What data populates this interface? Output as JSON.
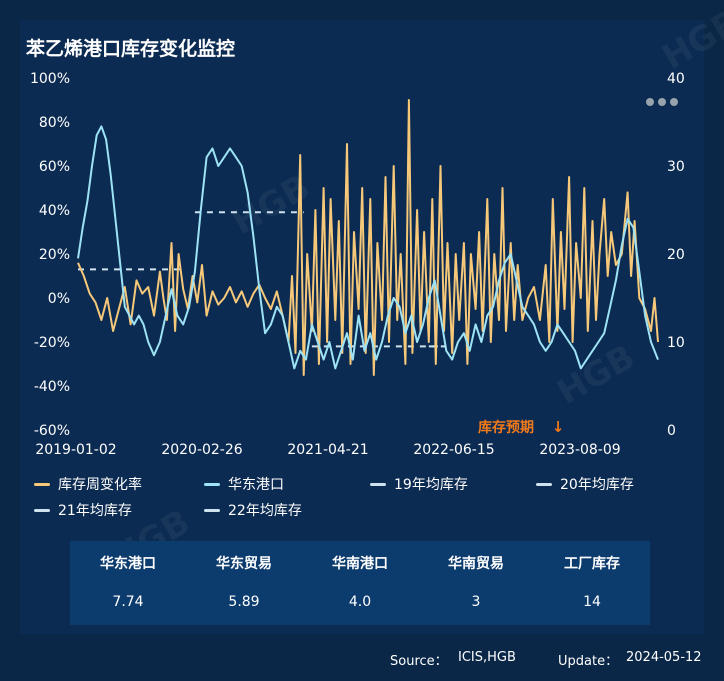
{
  "title": "苯乙烯港口库存变化监控",
  "menu_icon": "more-dots-icon",
  "watermark": "HGB",
  "chart_data": {
    "type": "line",
    "x_ticks": [
      "2019-01-02",
      "2020-02-26",
      "2021-04-21",
      "2022-06-15",
      "2023-08-09"
    ],
    "x_range": [
      "2019-01-02",
      "2024-05-12"
    ],
    "y_left": {
      "ticks": [
        "100%",
        "80%",
        "60%",
        "40%",
        "20%",
        "0%",
        "-20%",
        "-40%",
        "-60%"
      ],
      "range": [
        -60,
        100
      ],
      "unit": "%"
    },
    "y_right": {
      "ticks": [
        "40",
        "30",
        "20",
        "10",
        "0"
      ],
      "range": [
        0,
        40
      ]
    },
    "annotation": {
      "text": "库存预期",
      "arrow": "↓",
      "color": "#f07a1a"
    },
    "series": [
      {
        "name": "库存周变化率",
        "axis": "left",
        "color": "#f6c87a",
        "points": [
          [
            0,
            16
          ],
          [
            0.5,
            10
          ],
          [
            1,
            2
          ],
          [
            1.5,
            -2
          ],
          [
            2,
            -10
          ],
          [
            2.5,
            0
          ],
          [
            3,
            -15
          ],
          [
            3.5,
            -5
          ],
          [
            4,
            5
          ],
          [
            4.5,
            -12
          ],
          [
            5,
            8
          ],
          [
            5.5,
            2
          ],
          [
            6,
            5
          ],
          [
            6.5,
            -8
          ],
          [
            7,
            12
          ],
          [
            7.3,
            0
          ],
          [
            7.6,
            -10
          ],
          [
            8,
            25
          ],
          [
            8.3,
            -15
          ],
          [
            8.6,
            20
          ],
          [
            9,
            4
          ],
          [
            9.4,
            -5
          ],
          [
            9.8,
            10
          ],
          [
            10.2,
            -2
          ],
          [
            10.6,
            15
          ],
          [
            11,
            -8
          ],
          [
            11.5,
            3
          ],
          [
            12,
            -3
          ],
          [
            12.5,
            0
          ],
          [
            13,
            5
          ],
          [
            13.5,
            -2
          ],
          [
            14,
            3
          ],
          [
            14.5,
            -4
          ],
          [
            15,
            2
          ],
          [
            15.5,
            6
          ],
          [
            16,
            0
          ],
          [
            16.5,
            -5
          ],
          [
            17,
            3
          ],
          [
            17.5,
            -8
          ],
          [
            18,
            -20
          ],
          [
            18.3,
            10
          ],
          [
            18.6,
            -25
          ],
          [
            19,
            65
          ],
          [
            19.3,
            -35
          ],
          [
            19.6,
            20
          ],
          [
            20,
            -15
          ],
          [
            20.3,
            40
          ],
          [
            20.6,
            -30
          ],
          [
            21,
            50
          ],
          [
            21.3,
            -20
          ],
          [
            21.6,
            45
          ],
          [
            22,
            -10
          ],
          [
            22.3,
            35
          ],
          [
            22.6,
            -25
          ],
          [
            23,
            70
          ],
          [
            23.3,
            -30
          ],
          [
            23.6,
            30
          ],
          [
            24,
            -5
          ],
          [
            24.3,
            50
          ],
          [
            24.6,
            -25
          ],
          [
            25,
            45
          ],
          [
            25.3,
            -35
          ],
          [
            25.6,
            25
          ],
          [
            26,
            -10
          ],
          [
            26.3,
            55
          ],
          [
            26.6,
            -20
          ],
          [
            27,
            60
          ],
          [
            27.3,
            -10
          ],
          [
            27.6,
            20
          ],
          [
            28,
            -30
          ],
          [
            28.3,
            90
          ],
          [
            28.6,
            -25
          ],
          [
            29,
            40
          ],
          [
            29.3,
            -15
          ],
          [
            29.6,
            30
          ],
          [
            30,
            -20
          ],
          [
            30.3,
            45
          ],
          [
            30.6,
            -30
          ],
          [
            31,
            60
          ],
          [
            31.3,
            -15
          ],
          [
            31.6,
            25
          ],
          [
            32,
            -25
          ],
          [
            32.3,
            20
          ],
          [
            32.6,
            -10
          ],
          [
            33,
            25
          ],
          [
            33.3,
            -30
          ],
          [
            33.6,
            20
          ],
          [
            34,
            -5
          ],
          [
            34.3,
            30
          ],
          [
            34.6,
            -15
          ],
          [
            35,
            45
          ],
          [
            35.3,
            -20
          ],
          [
            35.6,
            20
          ],
          [
            36,
            -10
          ],
          [
            36.3,
            50
          ],
          [
            36.6,
            -15
          ],
          [
            37,
            25
          ],
          [
            37.3,
            -10
          ],
          [
            37.6,
            15
          ],
          [
            38,
            -10
          ],
          [
            38.5,
            0
          ],
          [
            39,
            5
          ],
          [
            39.5,
            -10
          ],
          [
            40,
            15
          ],
          [
            40.3,
            -20
          ],
          [
            40.6,
            45
          ],
          [
            41,
            -15
          ],
          [
            41.3,
            30
          ],
          [
            41.6,
            -5
          ],
          [
            42,
            55
          ],
          [
            42.3,
            -20
          ],
          [
            42.6,
            25
          ],
          [
            43,
            0
          ],
          [
            43.3,
            50
          ],
          [
            43.6,
            -15
          ],
          [
            44,
            35
          ],
          [
            44.3,
            -10
          ],
          [
            44.6,
            20
          ],
          [
            45,
            45
          ],
          [
            45.3,
            10
          ],
          [
            45.6,
            30
          ],
          [
            46,
            15
          ],
          [
            46.5,
            20
          ],
          [
            47,
            48
          ],
          [
            47.3,
            10
          ],
          [
            47.6,
            35
          ],
          [
            48,
            0
          ],
          [
            48.5,
            -5
          ],
          [
            49,
            -15
          ],
          [
            49.3,
            0
          ],
          [
            49.6,
            -20
          ]
        ]
      },
      {
        "name": "华东港口",
        "axis": "right",
        "color": "#9de3f5",
        "points": [
          [
            0,
            19.5
          ],
          [
            0.4,
            23
          ],
          [
            0.8,
            26
          ],
          [
            1.2,
            30
          ],
          [
            1.6,
            33.5
          ],
          [
            2,
            34.5
          ],
          [
            2.4,
            33
          ],
          [
            2.8,
            29
          ],
          [
            3.2,
            24
          ],
          [
            3.6,
            19
          ],
          [
            4,
            14
          ],
          [
            4.4,
            13
          ],
          [
            4.8,
            12
          ],
          [
            5.2,
            13
          ],
          [
            5.6,
            12
          ],
          [
            6,
            10
          ],
          [
            6.5,
            8.5
          ],
          [
            7,
            10
          ],
          [
            7.5,
            13
          ],
          [
            8,
            16
          ],
          [
            8.5,
            13
          ],
          [
            9,
            12
          ],
          [
            9.5,
            14
          ],
          [
            10,
            18
          ],
          [
            10.5,
            25
          ],
          [
            11,
            31
          ],
          [
            11.5,
            32
          ],
          [
            12,
            30
          ],
          [
            12.5,
            31
          ],
          [
            13,
            32
          ],
          [
            13.5,
            31
          ],
          [
            14,
            30
          ],
          [
            14.5,
            27
          ],
          [
            15,
            22
          ],
          [
            15.5,
            16
          ],
          [
            16,
            11
          ],
          [
            16.5,
            12
          ],
          [
            17,
            14
          ],
          [
            17.5,
            13
          ],
          [
            18,
            10
          ],
          [
            18.5,
            7
          ],
          [
            19,
            9
          ],
          [
            19.5,
            8
          ],
          [
            20,
            12
          ],
          [
            20.5,
            10
          ],
          [
            21,
            8
          ],
          [
            21.5,
            10
          ],
          [
            22,
            7
          ],
          [
            22.5,
            9
          ],
          [
            23,
            11
          ],
          [
            23.5,
            8
          ],
          [
            24,
            13
          ],
          [
            24.5,
            9
          ],
          [
            25,
            11
          ],
          [
            25.5,
            8
          ],
          [
            26,
            10
          ],
          [
            26.5,
            13
          ],
          [
            27,
            15
          ],
          [
            27.5,
            14
          ],
          [
            28,
            11
          ],
          [
            28.5,
            13
          ],
          [
            29,
            10
          ],
          [
            29.5,
            12
          ],
          [
            30,
            15
          ],
          [
            30.5,
            17
          ],
          [
            31,
            13
          ],
          [
            31.5,
            9
          ],
          [
            32,
            8
          ],
          [
            32.5,
            10
          ],
          [
            33,
            11
          ],
          [
            33.5,
            9
          ],
          [
            34,
            12
          ],
          [
            34.5,
            10
          ],
          [
            35,
            13
          ],
          [
            35.5,
            14
          ],
          [
            36,
            17
          ],
          [
            36.5,
            19
          ],
          [
            37,
            20
          ],
          [
            37.5,
            17
          ],
          [
            38,
            14
          ],
          [
            38.5,
            13
          ],
          [
            39,
            12
          ],
          [
            39.5,
            10
          ],
          [
            40,
            9
          ],
          [
            40.5,
            10
          ],
          [
            41,
            12
          ],
          [
            41.5,
            11
          ],
          [
            42,
            10
          ],
          [
            42.5,
            9
          ],
          [
            43,
            7
          ],
          [
            43.5,
            8
          ],
          [
            44,
            9
          ],
          [
            44.5,
            10
          ],
          [
            45,
            11
          ],
          [
            45.5,
            14
          ],
          [
            46,
            17
          ],
          [
            46.5,
            21
          ],
          [
            47,
            24
          ],
          [
            47.5,
            23
          ],
          [
            48,
            18
          ],
          [
            48.5,
            13
          ],
          [
            49,
            10
          ],
          [
            49.6,
            8
          ]
        ]
      },
      {
        "name": "19年均库存",
        "axis": "left",
        "color": "#cfe3ef",
        "dashed": true,
        "from": 0,
        "to": 8.7,
        "value": 13
      },
      {
        "name": "20年均库存",
        "axis": "left",
        "color": "#cfe3ef",
        "dashed": true,
        "from": 10,
        "to": 19.3,
        "value": 39
      },
      {
        "name": "21年均库存",
        "axis": "left",
        "color": "#cfe3ef",
        "dashed": true,
        "from": 20,
        "to": 31.5,
        "value": -22
      },
      {
        "name": "22年均库存",
        "axis": "left",
        "color": "#cfe3ef",
        "dashed": true,
        "from": 30,
        "to": 31.5,
        "value": -22
      }
    ]
  },
  "legend": [
    "库存周变化率",
    "华东港口",
    "19年均库存",
    "20年均库存",
    "21年均库存",
    "22年均库存"
  ],
  "legend_colors": [
    "#f6c87a",
    "#9de3f5",
    "#cfe3ef",
    "#cfe3ef",
    "#cfe3ef",
    "#cfe3ef"
  ],
  "table": {
    "headers": [
      "华东港口",
      "华东贸易",
      "华南港口",
      "华南贸易",
      "工厂库存"
    ],
    "values": [
      "7.74",
      "5.89",
      "4.0",
      "3",
      "14"
    ]
  },
  "footer": {
    "source_label": "Source：",
    "source_value": "ICIS,HGB",
    "update_label": "Update：",
    "update_value": "2024-05-12"
  }
}
